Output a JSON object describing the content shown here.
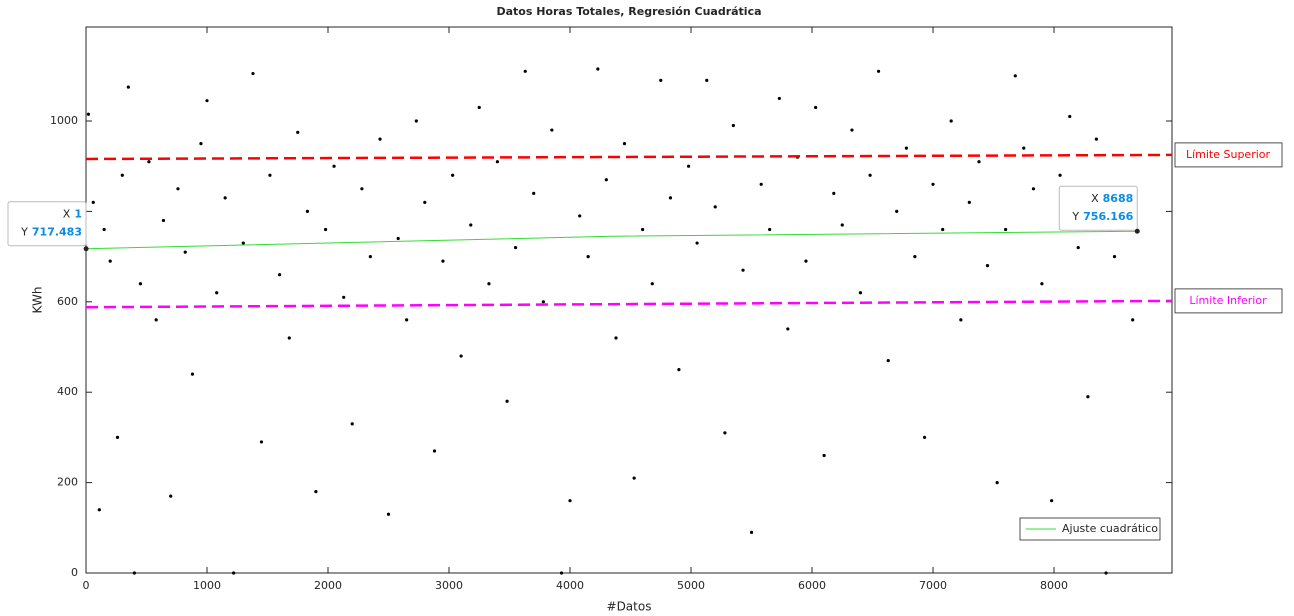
{
  "chart_data": {
    "type": "scatter",
    "title": "Datos Horas Totales, Regresión Cuadrática",
    "xlabel": "#Datos",
    "ylabel": "KWh",
    "xlim": [
      0,
      8975
    ],
    "ylim": [
      0,
      1208
    ],
    "xticks": [
      0,
      1000,
      2000,
      3000,
      4000,
      5000,
      6000,
      7000,
      8000
    ],
    "yticks": [
      0,
      200,
      400,
      600,
      800,
      1000
    ],
    "points": {
      "color": "#000000",
      "x": [
        20,
        60,
        110,
        150,
        200,
        260,
        300,
        350,
        400,
        450,
        520,
        580,
        640,
        700,
        760,
        820,
        880,
        950,
        1000,
        1080,
        1150,
        1220,
        1300,
        1380,
        1450,
        1520,
        1600,
        1680,
        1750,
        1830,
        1900,
        1980,
        2050,
        2130,
        2200,
        2280,
        2350,
        2430,
        2500,
        2580,
        2650,
        2730,
        2800,
        2880,
        2950,
        3030,
        3100,
        3180,
        3250,
        3330,
        3400,
        3480,
        3550,
        3630,
        3700,
        3780,
        3850,
        3930,
        4000,
        4080,
        4150,
        4230,
        4300,
        4380,
        4450,
        4530,
        4600,
        4680,
        4750,
        4830,
        4900,
        4980,
        5050,
        5130,
        5200,
        5280,
        5350,
        5430,
        5500,
        5580,
        5650,
        5730,
        5800,
        5880,
        5950,
        6030,
        6100,
        6180,
        6250,
        6330,
        6400,
        6480,
        6550,
        6630,
        6700,
        6780,
        6850,
        6930,
        7000,
        7080,
        7150,
        7230,
        7300,
        7380,
        7450,
        7530,
        7600,
        7680,
        7750,
        7830,
        7900,
        7980,
        8050,
        8130,
        8200,
        8280,
        8350,
        8430,
        8500,
        8580,
        8650
      ],
      "values": [
        1015,
        820,
        140,
        760,
        690,
        300,
        880,
        1075,
        0,
        640,
        910,
        560,
        780,
        170,
        850,
        710,
        440,
        950,
        1045,
        620,
        830,
        0,
        730,
        1105,
        290,
        880,
        660,
        520,
        975,
        800,
        180,
        760,
        900,
        610,
        330,
        850,
        700,
        960,
        130,
        740,
        560,
        1000,
        820,
        270,
        690,
        880,
        480,
        770,
        1030,
        640,
        910,
        380,
        720,
        1110,
        840,
        600,
        980,
        0,
        160,
        790,
        700,
        1115,
        870,
        520,
        950,
        210,
        760,
        640,
        1090,
        830,
        450,
        900,
        730,
        1090,
        810,
        310,
        990,
        670,
        90,
        860,
        760,
        1050,
        540,
        920,
        690,
        1030,
        260,
        840,
        770,
        980,
        620,
        880,
        1110,
        470,
        800,
        940,
        700,
        300,
        860,
        760,
        1000,
        560,
        820,
        910,
        680,
        200,
        760,
        1100,
        940,
        850,
        640,
        160,
        880,
        1010,
        720,
        390,
        960,
        0,
        700,
        820,
        560
      ]
    },
    "fit": {
      "name": "Ajuste cuadrático",
      "color": "#33dd33",
      "x": [
        1,
        4344,
        8688
      ],
      "values": [
        717.483,
        745,
        756.166
      ]
    },
    "limits": [
      {
        "label": "Límite Superior",
        "color": "#ff0000",
        "x": [
          0,
          8975
        ],
        "values": [
          916,
          925
        ]
      },
      {
        "label": "Límite Inferior",
        "color": "#ff00ff",
        "x": [
          0,
          8975
        ],
        "values": [
          588,
          602
        ]
      }
    ],
    "datatips": [
      {
        "x_name": "X",
        "y_name": "Y",
        "x": 1,
        "y": 717.483
      },
      {
        "x_name": "X",
        "y_name": "Y",
        "x": 8688,
        "y": 756.166
      }
    ],
    "legend": "southeast"
  }
}
